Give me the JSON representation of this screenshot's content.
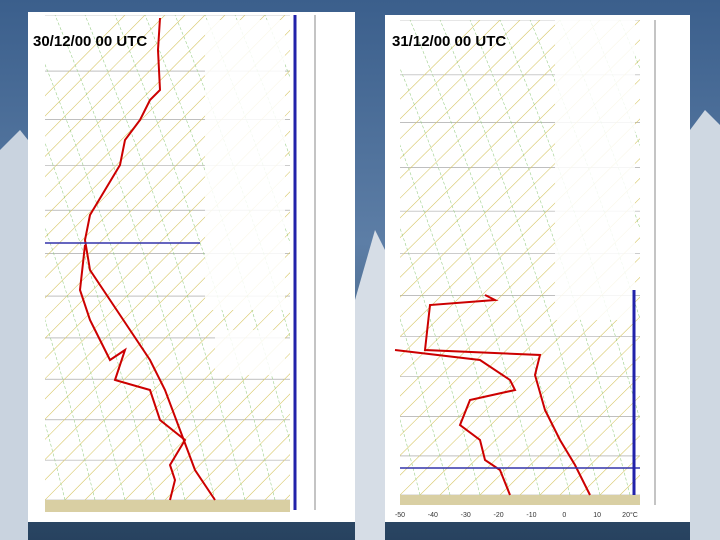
{
  "panels": [
    {
      "title": "30/12/00 00 UTC"
    },
    {
      "title": "31/12/00 00 UTC",
      "temperature_labels": [
        "-50",
        "-40",
        "-30",
        "-20",
        "-10",
        "0",
        "10",
        "20°C"
      ]
    }
  ]
}
